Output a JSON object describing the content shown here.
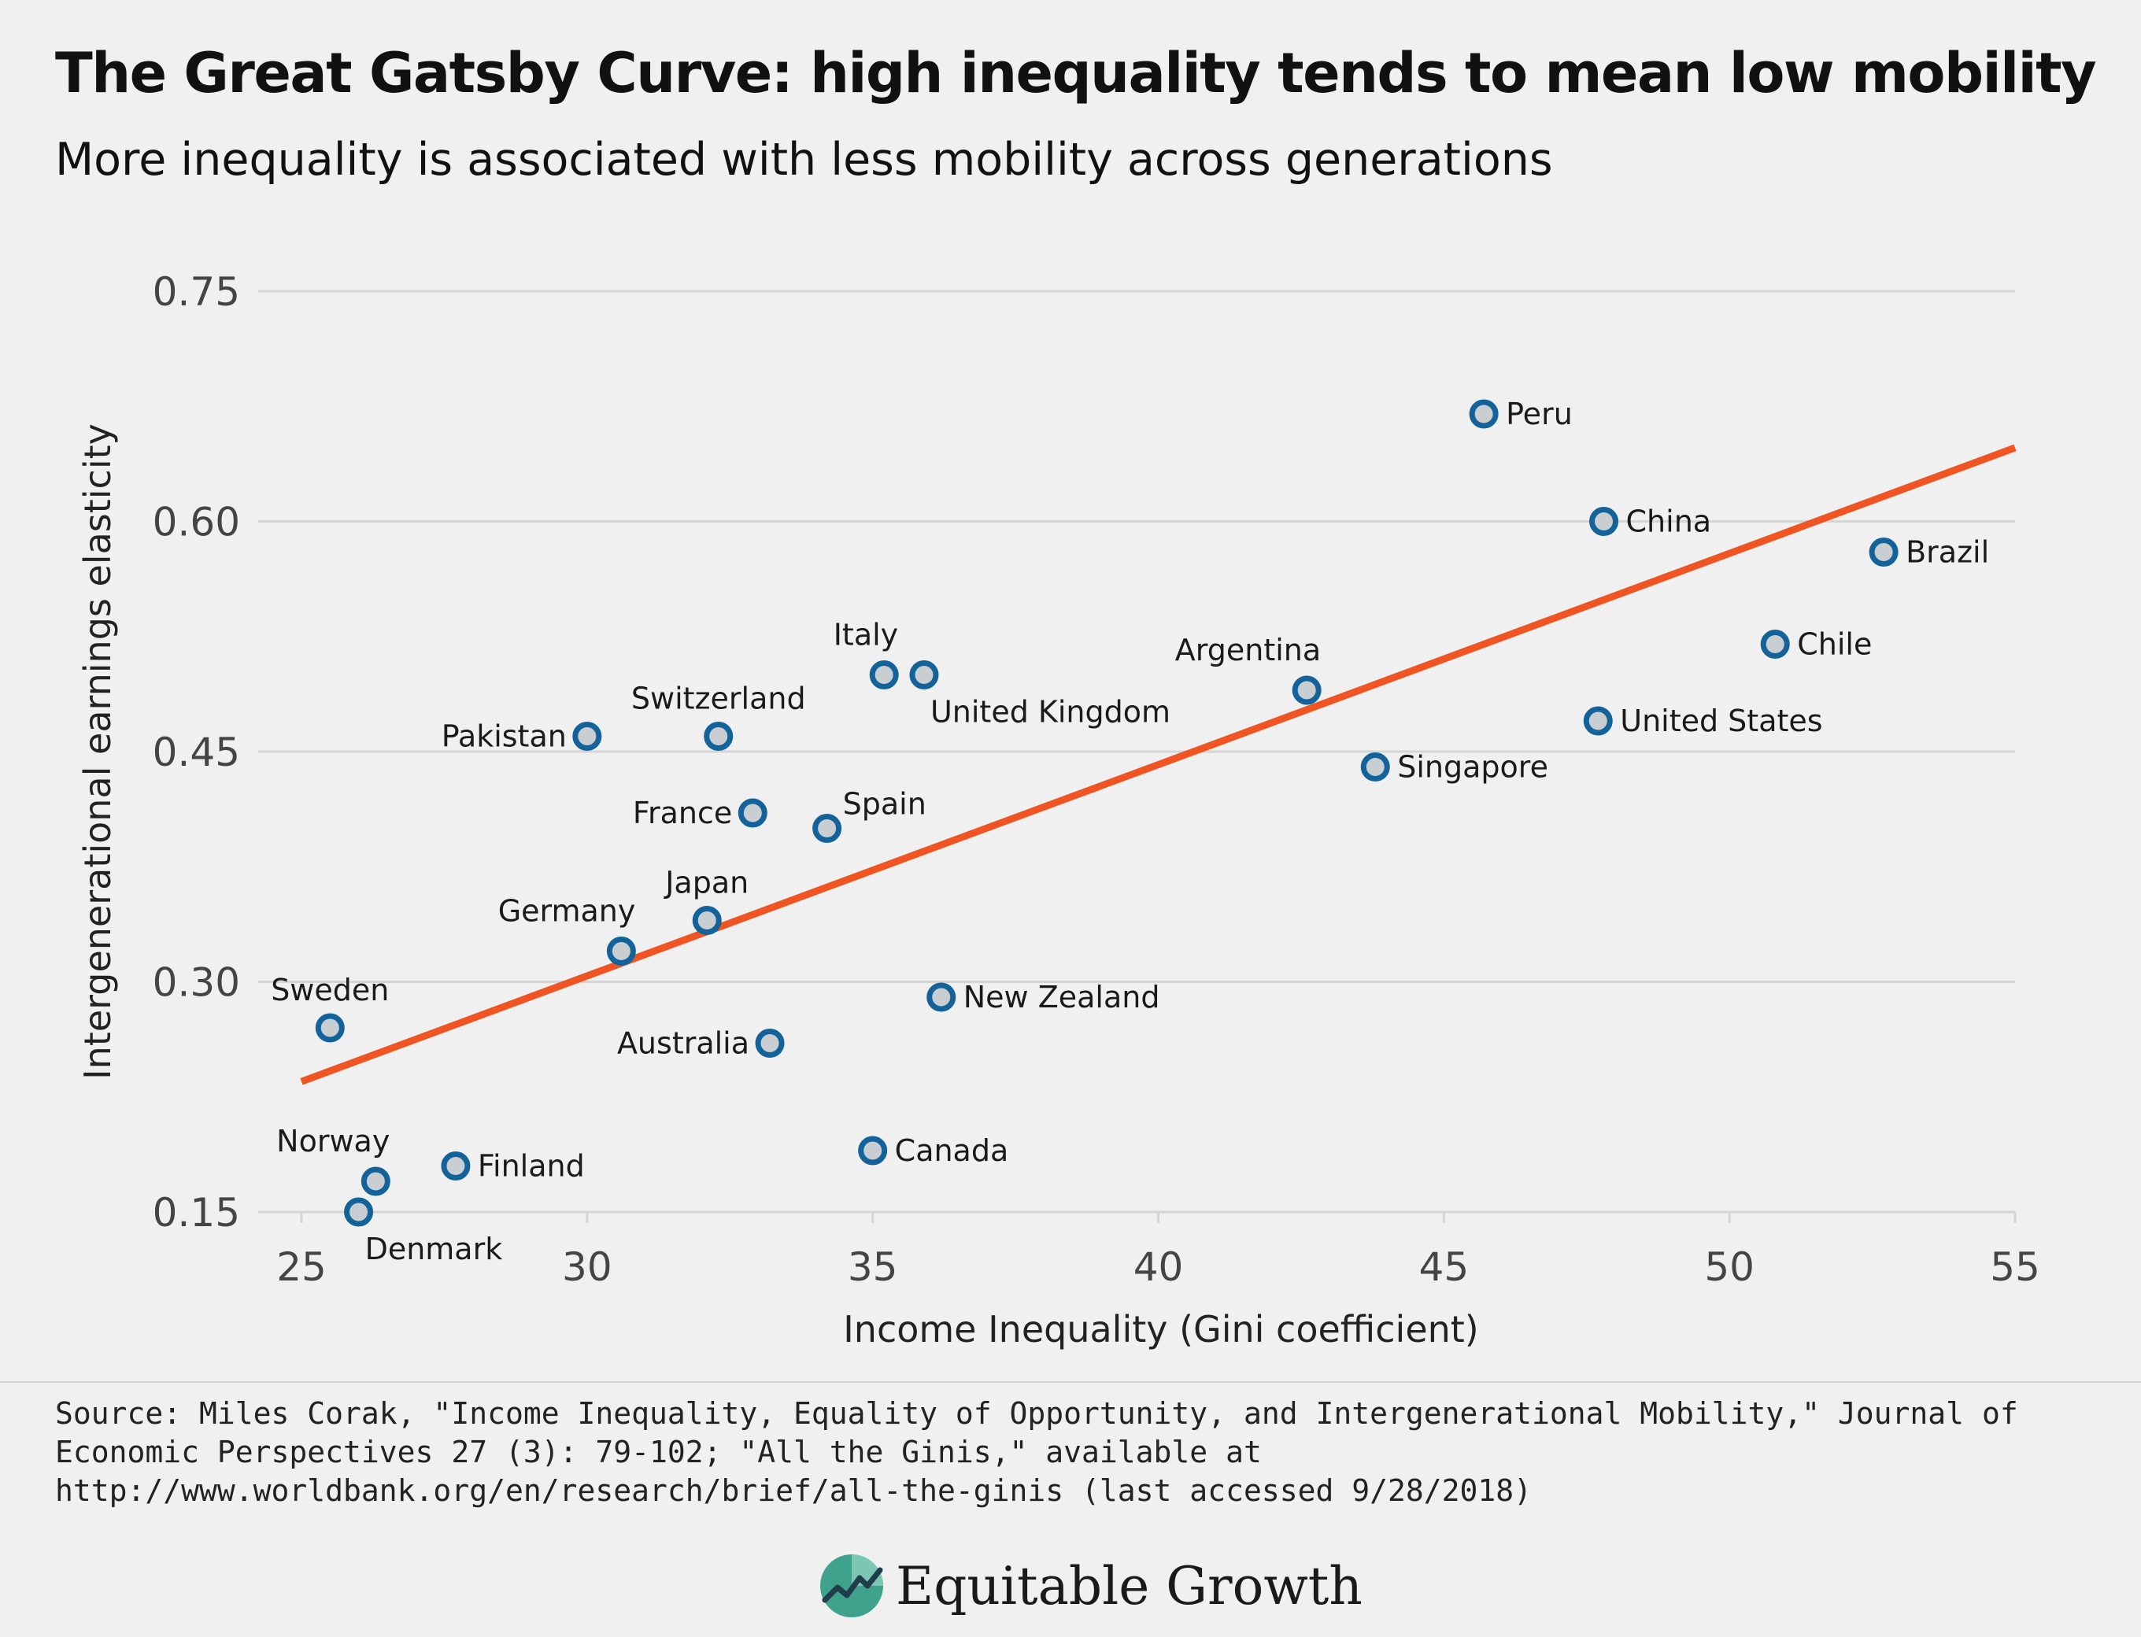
{
  "header": {
    "title": "The Great Gatsby Curve: high inequality tends to mean low mobility",
    "subtitle": "More inequality is associated with less mobility across generations"
  },
  "chart_data": {
    "type": "scatter",
    "title": "The Great Gatsby Curve: high inequality tends to mean low mobility",
    "subtitle": "More inequality is associated with less mobility across generations",
    "xlabel": "Income Inequality (Gini coefficient)",
    "ylabel": "Intergenerational earnings elasticity",
    "xlim": [
      25,
      55
    ],
    "ylim": [
      0.15,
      0.75
    ],
    "xticks": [
      "25",
      "30",
      "35",
      "40",
      "45",
      "50",
      "55"
    ],
    "yticks": [
      "0.15",
      "0.30",
      "0.45",
      "0.60",
      "0.75"
    ],
    "grid": "horizontal",
    "points": [
      {
        "label": "Peru",
        "x": 45.7,
        "y": 0.67,
        "pos": "right"
      },
      {
        "label": "China",
        "x": 47.8,
        "y": 0.6,
        "pos": "right"
      },
      {
        "label": "Brazil",
        "x": 52.7,
        "y": 0.58,
        "pos": "right"
      },
      {
        "label": "Chile",
        "x": 50.8,
        "y": 0.52,
        "pos": "right"
      },
      {
        "label": "United States",
        "x": 47.7,
        "y": 0.47,
        "pos": "right"
      },
      {
        "label": "Argentina",
        "x": 42.6,
        "y": 0.49,
        "pos": "above-left"
      },
      {
        "label": "Singapore",
        "x": 43.8,
        "y": 0.44,
        "pos": "right"
      },
      {
        "label": "Italy",
        "x": 35.2,
        "y": 0.5,
        "pos": "above-left"
      },
      {
        "label": "United Kingdom",
        "x": 35.9,
        "y": 0.5,
        "pos": "below-right"
      },
      {
        "label": "Switzerland",
        "x": 32.3,
        "y": 0.46,
        "pos": "above"
      },
      {
        "label": "Pakistan",
        "x": 30.0,
        "y": 0.46,
        "pos": "left"
      },
      {
        "label": "France",
        "x": 32.9,
        "y": 0.41,
        "pos": "left"
      },
      {
        "label": "Spain",
        "x": 34.2,
        "y": 0.4,
        "pos": "above-right"
      },
      {
        "label": "Japan",
        "x": 32.1,
        "y": 0.34,
        "pos": "above"
      },
      {
        "label": "Germany",
        "x": 30.6,
        "y": 0.32,
        "pos": "above-left"
      },
      {
        "label": "New Zealand",
        "x": 36.2,
        "y": 0.29,
        "pos": "right"
      },
      {
        "label": "Australia",
        "x": 33.2,
        "y": 0.26,
        "pos": "left"
      },
      {
        "label": "Sweden",
        "x": 25.5,
        "y": 0.27,
        "pos": "above"
      },
      {
        "label": "Canada",
        "x": 35.0,
        "y": 0.19,
        "pos": "right"
      },
      {
        "label": "Finland",
        "x": 27.7,
        "y": 0.18,
        "pos": "right"
      },
      {
        "label": "Norway",
        "x": 26.3,
        "y": 0.17,
        "pos": "above-left"
      },
      {
        "label": "Denmark",
        "x": 26.0,
        "y": 0.15,
        "pos": "below-right"
      }
    ],
    "trendline": {
      "x1": 25.0,
      "y1": 0.235,
      "x2": 55.0,
      "y2": 0.648
    }
  },
  "colors": {
    "background": "#f0f0f0",
    "trendline": "#f05423",
    "marker_stroke": "#13639a",
    "marker_fill": "#c9ced3",
    "gridline": "#d5d5d5",
    "axis_text": "#444444",
    "logo_green": "#3fa28c"
  },
  "footer": {
    "source": "Source: Miles Corak, \"Income Inequality, Equality of Opportunity, and Intergenerational Mobility,\" Journal of Economic Perspectives 27 (3): 79-102; \"All the Ginis,\" available at http://www.worldbank.org/en/research/brief/all-the-ginis (last accessed 9/28/2018)",
    "logo_text": "Equitable Growth",
    "logo_icon": "chart-line-logo-icon"
  }
}
